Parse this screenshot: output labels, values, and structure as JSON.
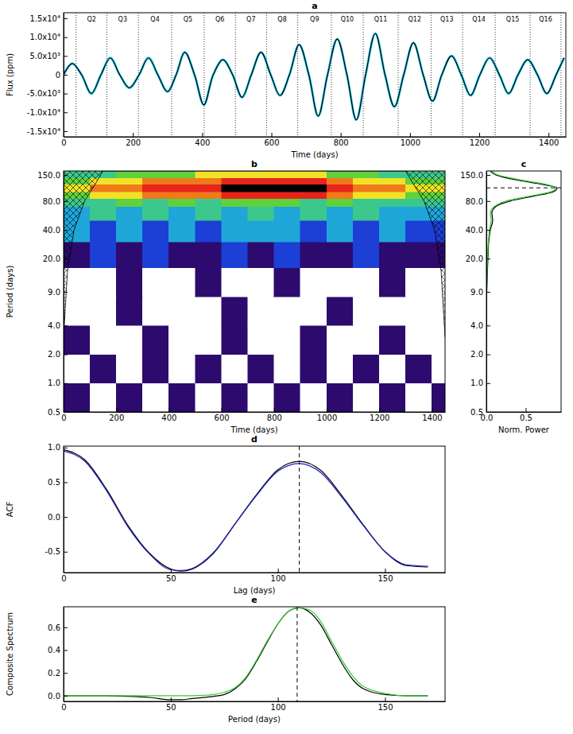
{
  "chart_data": [
    {
      "type": "line",
      "title": "a",
      "xlabel": "Time (days)",
      "ylabel": "Flux (ppm)",
      "xlim": [
        0,
        1450
      ],
      "ylim": [
        -16500,
        16500
      ],
      "xticks": [
        0,
        200,
        400,
        600,
        800,
        1000,
        1200,
        1400
      ],
      "yticks": [
        {
          "value": -15000,
          "label": "-1.5x10⁴"
        },
        {
          "value": -10000,
          "label": "-1.0x10⁴"
        },
        {
          "value": -5000,
          "label": "-5.0x10³"
        },
        0,
        {
          "value": 5000,
          "label": "5.0x10³"
        },
        {
          "value": 10000,
          "label": "1.0x10⁴"
        },
        {
          "value": 15000,
          "label": "1.5x10⁴"
        }
      ],
      "quarters": [
        {
          "label": "Q2",
          "start": 36,
          "end": 125
        },
        {
          "label": "Q3",
          "start": 125,
          "end": 216
        },
        {
          "label": "Q4",
          "start": 216,
          "end": 312
        },
        {
          "label": "Q5",
          "start": 312,
          "end": 406
        },
        {
          "label": "Q6",
          "start": 406,
          "end": 496
        },
        {
          "label": "Q7",
          "start": 496,
          "end": 586
        },
        {
          "label": "Q8",
          "start": 586,
          "end": 676
        },
        {
          "label": "Q9",
          "start": 676,
          "end": 773
        },
        {
          "label": "Q10",
          "start": 773,
          "end": 865
        },
        {
          "label": "Q11",
          "start": 865,
          "end": 966
        },
        {
          "label": "Q12",
          "start": 966,
          "end": 1061
        },
        {
          "label": "Q13",
          "start": 1061,
          "end": 1152
        },
        {
          "label": "Q14",
          "start": 1152,
          "end": 1246
        },
        {
          "label": "Q15",
          "start": 1246,
          "end": 1347
        },
        {
          "label": "Q16",
          "start": 1347,
          "end": 1436
        }
      ],
      "x": [
        0,
        25,
        52,
        80,
        108,
        135,
        162,
        190,
        218,
        245,
        272,
        300,
        325,
        350,
        378,
        405,
        432,
        460,
        488,
        515,
        542,
        570,
        598,
        625,
        652,
        680,
        708,
        735,
        762,
        790,
        818,
        845,
        872,
        900,
        928,
        955,
        982,
        1010,
        1038,
        1065,
        1092,
        1120,
        1148,
        1175,
        1202,
        1230,
        1258,
        1285,
        1312,
        1340,
        1368,
        1395,
        1422,
        1445
      ],
      "series": [
        {
          "color": "#33ccee",
          "values": [
            0,
            3000,
            0,
            -5000,
            0,
            4500,
            0,
            -3500,
            0,
            4500,
            0,
            -4500,
            0,
            6000,
            0,
            -8000,
            0,
            4000,
            0,
            -6000,
            0,
            6000,
            0,
            -5500,
            0,
            8000,
            0,
            -11000,
            0,
            9500,
            0,
            -12000,
            0,
            11000,
            0,
            -8500,
            0,
            8500,
            0,
            -7000,
            0,
            5000,
            0,
            -5500,
            0,
            4500,
            0,
            -5000,
            0,
            4000,
            0,
            -5000,
            0,
            4500
          ]
        },
        {
          "color": "#000000",
          "values": [
            0,
            3000,
            0,
            -5000,
            0,
            4500,
            0,
            -3500,
            0,
            4500,
            0,
            -4500,
            0,
            6000,
            0,
            -8000,
            0,
            4000,
            0,
            -6000,
            0,
            6000,
            0,
            -5500,
            0,
            8000,
            0,
            -11000,
            0,
            9500,
            0,
            -12000,
            0,
            11000,
            0,
            -8500,
            0,
            8500,
            0,
            -7000,
            0,
            5000,
            0,
            -5500,
            0,
            4500,
            0,
            -5000,
            0,
            4000,
            0,
            -5000,
            0,
            4500
          ]
        }
      ]
    },
    {
      "type": "heatmap",
      "title": "b",
      "xlabel": "Time (days)",
      "ylabel": "Period (days)",
      "log": "y",
      "xlim": [
        0,
        1450
      ],
      "ylim": [
        0.5,
        165
      ],
      "xticks": [
        0,
        200,
        400,
        600,
        800,
        1000,
        1200,
        1400
      ],
      "yticks": [
        0.5,
        {
          "value": 1,
          "label": "1.0"
        },
        {
          "value": 2,
          "label": "2.0"
        },
        {
          "value": 4,
          "label": "4.0"
        },
        {
          "value": 9,
          "label": "9.0"
        },
        {
          "value": 20,
          "label": "20.0"
        },
        {
          "value": 40,
          "label": "40.0"
        },
        {
          "value": 80,
          "label": "80.0"
        },
        {
          "value": 150,
          "label": "150.0"
        }
      ],
      "x_edges": [
        0,
        100,
        200,
        300,
        400,
        500,
        600,
        700,
        800,
        900,
        1000,
        1100,
        1200,
        1300,
        1400,
        1450
      ],
      "y_edges": [
        0.5,
        1,
        2,
        4,
        8,
        16,
        30,
        50,
        70,
        85,
        100,
        120,
        140,
        165
      ],
      "zlim": [
        0,
        1
      ],
      "colors": [
        "#ffffff",
        "#2d0a6e",
        "#1c3fd6",
        "#1fa6d8",
        "#3cc88c",
        "#5fd13c",
        "#f2e227",
        "#f07a1a",
        "#e8231a",
        "#000000"
      ],
      "cells": [
        [
          0.12,
          0.05,
          0.12,
          0.05,
          0.12,
          0.05,
          0.12,
          0.05,
          0.12,
          0.05,
          0.12,
          0.05,
          0.12,
          0.05,
          0.12
        ],
        [
          0.05,
          0.12,
          0.05,
          0.12,
          0.05,
          0.12,
          0.05,
          0.12,
          0.05,
          0.12,
          0.05,
          0.12,
          0.05,
          0.12,
          0.05
        ],
        [
          0.12,
          0.05,
          0.05,
          0.12,
          0.05,
          0.05,
          0.12,
          0.05,
          0.05,
          0.12,
          0.05,
          0.05,
          0.12,
          0.05,
          0.05
        ],
        [
          0.03,
          0.03,
          0.11,
          0.03,
          0.03,
          0.03,
          0.11,
          0.03,
          0.03,
          0.03,
          0.11,
          0.03,
          0.03,
          0.03,
          0.03
        ],
        [
          0.05,
          0.05,
          0.11,
          0.05,
          0.05,
          0.11,
          0.05,
          0.05,
          0.11,
          0.05,
          0.05,
          0.05,
          0.11,
          0.05,
          0.05
        ],
        [
          0.15,
          0.25,
          0.12,
          0.25,
          0.15,
          0.12,
          0.25,
          0.15,
          0.25,
          0.12,
          0.15,
          0.25,
          0.12,
          0.15,
          0.12
        ],
        [
          0.35,
          0.25,
          0.35,
          0.25,
          0.35,
          0.25,
          0.35,
          0.3,
          0.35,
          0.25,
          0.35,
          0.25,
          0.35,
          0.25,
          0.25
        ],
        [
          0.35,
          0.45,
          0.35,
          0.45,
          0.35,
          0.45,
          0.35,
          0.45,
          0.35,
          0.45,
          0.35,
          0.45,
          0.35,
          0.35,
          0.35
        ],
        [
          0.45,
          0.45,
          0.5,
          0.45,
          0.5,
          0.45,
          0.5,
          0.5,
          0.5,
          0.45,
          0.5,
          0.45,
          0.45,
          0.45,
          0.45
        ],
        [
          0.55,
          0.6,
          0.65,
          0.7,
          0.7,
          0.75,
          0.8,
          0.85,
          0.85,
          0.8,
          0.75,
          0.65,
          0.6,
          0.55,
          0.5
        ],
        [
          0.65,
          0.7,
          0.75,
          0.8,
          0.8,
          0.85,
          0.95,
          0.98,
          0.98,
          0.95,
          0.85,
          0.75,
          0.7,
          0.65,
          0.6
        ],
        [
          0.55,
          0.6,
          0.65,
          0.7,
          0.7,
          0.75,
          0.8,
          0.85,
          0.85,
          0.8,
          0.75,
          0.65,
          0.6,
          0.55,
          0.5
        ],
        [
          0.4,
          0.45,
          0.5,
          0.55,
          0.55,
          0.6,
          0.65,
          0.65,
          0.65,
          0.6,
          0.55,
          0.5,
          0.45,
          0.45,
          0.4
        ]
      ],
      "coi": {
        "x": [
          0,
          15,
          40,
          80,
          120,
          150,
          1300,
          1330,
          1370,
          1410,
          1435,
          1450
        ],
        "y": [
          3,
          15,
          40,
          80,
          120,
          165,
          165,
          120,
          80,
          40,
          15,
          3
        ]
      }
    },
    {
      "type": "line",
      "title": "c",
      "xlabel": "Norm. Power",
      "log": "y",
      "orientation": "horizontal",
      "xlim": [
        0,
        0.95
      ],
      "ylim": [
        0.5,
        165
      ],
      "xticks": [
        {
          "value": 0,
          "label": "0.0"
        },
        0.5
      ],
      "yticks": [
        0.5,
        {
          "value": 1,
          "label": "1.0"
        },
        {
          "value": 2,
          "label": "2.0"
        },
        {
          "value": 4,
          "label": "4.0"
        },
        {
          "value": 9,
          "label": "9.0"
        },
        {
          "value": 20,
          "label": "20.0"
        },
        {
          "value": 40,
          "label": "40.0"
        },
        {
          "value": 80,
          "label": "80.0"
        },
        {
          "value": 150,
          "label": "150.0"
        }
      ],
      "reference_y": 110,
      "y": [
        0.5,
        1,
        2,
        4,
        9,
        20,
        30,
        40,
        50,
        60,
        70,
        80,
        90,
        100,
        110,
        120,
        130,
        140,
        150,
        165
      ],
      "series": [
        {
          "color": "#000000",
          "values": [
            0,
            0,
            0,
            0,
            0.005,
            0.02,
            0.03,
            0.05,
            0.08,
            0.07,
            0.12,
            0.3,
            0.6,
            0.85,
            0.9,
            0.7,
            0.45,
            0.25,
            0.12,
            0.05
          ]
        },
        {
          "color": "#33cc33",
          "values": [
            0,
            0,
            0,
            0,
            0.004,
            0.015,
            0.025,
            0.04,
            0.06,
            0.05,
            0.1,
            0.25,
            0.55,
            0.82,
            0.88,
            0.75,
            0.5,
            0.3,
            0.15,
            0.07
          ]
        }
      ]
    },
    {
      "type": "line",
      "title": "d",
      "xlabel": "Lag (days)",
      "ylabel": "ACF",
      "xlim": [
        0,
        178
      ],
      "ylim": [
        -0.8,
        1.02
      ],
      "xticks": [
        0,
        50,
        100,
        150
      ],
      "yticks": [
        -0.5,
        {
          "value": 0,
          "label": "0.0"
        },
        0.5,
        {
          "value": 1,
          "label": "1.0"
        }
      ],
      "reference_x": 110,
      "x": [
        0,
        10,
        20,
        30,
        40,
        50,
        55,
        60,
        70,
        80,
        90,
        100,
        110,
        120,
        130,
        140,
        150,
        160,
        170
      ],
      "series": [
        {
          "color": "#000000",
          "values": [
            0.97,
            0.82,
            0.4,
            -0.12,
            -0.52,
            -0.75,
            -0.78,
            -0.75,
            -0.52,
            -0.1,
            0.32,
            0.68,
            0.8,
            0.67,
            0.3,
            -0.12,
            -0.5,
            -0.7,
            -0.72
          ]
        },
        {
          "color": "#2020c0",
          "values": [
            0.95,
            0.8,
            0.38,
            -0.14,
            -0.53,
            -0.76,
            -0.77,
            -0.74,
            -0.51,
            -0.1,
            0.31,
            0.66,
            0.77,
            0.64,
            0.28,
            -0.13,
            -0.5,
            -0.69,
            -0.71
          ]
        }
      ]
    },
    {
      "type": "line",
      "title": "e",
      "xlabel": "Period (days)",
      "ylabel": "Composite Spectrum",
      "xlim": [
        0,
        178
      ],
      "ylim": [
        -0.05,
        0.78
      ],
      "xticks": [
        0,
        50,
        100,
        150
      ],
      "yticks": [
        {
          "value": 0,
          "label": "0.0"
        },
        0.2,
        0.4,
        0.6
      ],
      "reference_x": 109,
      "x": [
        0,
        10,
        20,
        30,
        40,
        50,
        55,
        60,
        70,
        75,
        80,
        85,
        90,
        95,
        100,
        105,
        110,
        115,
        120,
        125,
        130,
        135,
        140,
        150,
        160,
        170
      ],
      "series": [
        {
          "color": "#000000",
          "values": [
            0,
            0,
            0,
            -0.005,
            -0.015,
            -0.035,
            -0.035,
            -0.025,
            -0.005,
            0.01,
            0.06,
            0.15,
            0.3,
            0.47,
            0.63,
            0.74,
            0.77,
            0.73,
            0.62,
            0.45,
            0.28,
            0.14,
            0.06,
            0.01,
            0,
            0
          ]
        },
        {
          "color": "#33cc33",
          "values": [
            0,
            0,
            0,
            0,
            0,
            0,
            0,
            0,
            0.01,
            0.03,
            0.07,
            0.16,
            0.31,
            0.48,
            0.63,
            0.74,
            0.77,
            0.75,
            0.65,
            0.48,
            0.31,
            0.17,
            0.08,
            0.02,
            0,
            0
          ]
        }
      ]
    }
  ]
}
